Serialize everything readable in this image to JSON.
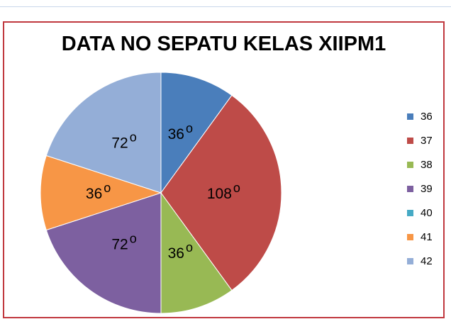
{
  "chart_data": {
    "type": "pie",
    "title": "DATA NO SEPATU KELAS XIIPM1",
    "categories": [
      "36",
      "37",
      "38",
      "39",
      "40",
      "41",
      "42"
    ],
    "values": [
      36,
      108,
      36,
      72,
      0,
      36,
      72
    ],
    "data_labels": [
      "36",
      "108",
      "36",
      "72",
      "",
      "36",
      "72"
    ],
    "label_suffix": "o",
    "colors": [
      "#4a7ebb",
      "#be4b48",
      "#98b954",
      "#7d60a0",
      "#46aac5",
      "#f79646",
      "#94aed7"
    ],
    "legend": "right"
  }
}
